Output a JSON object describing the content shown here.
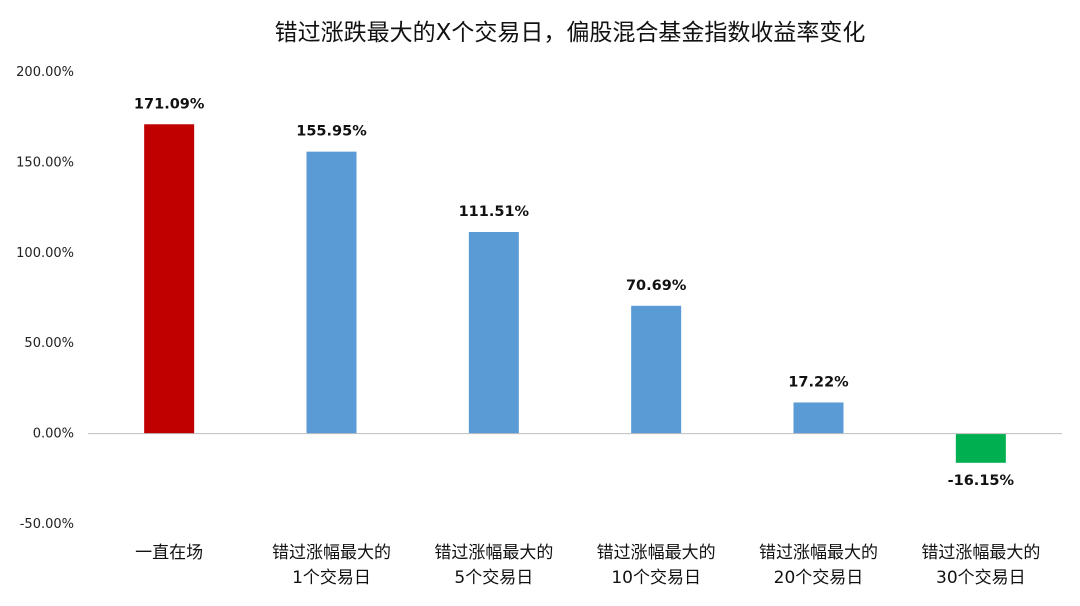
{
  "chart_data": {
    "type": "bar",
    "title": "错过涨跌最大的X个交易日，偏股混合基金指数收益率变化",
    "xlabel": "",
    "ylabel": "",
    "ylim": [
      -50,
      200
    ],
    "yticks": [
      -50,
      0,
      50,
      100,
      150,
      200
    ],
    "ytick_labels": [
      "-50.00%",
      "0.00%",
      "50.00%",
      "100.00%",
      "150.00%",
      "200.00%"
    ],
    "grid": false,
    "legend": "none",
    "categories": [
      [
        "一直在场"
      ],
      [
        "错过涨幅最大的",
        "1个交易日"
      ],
      [
        "错过涨幅最大的",
        "5个交易日"
      ],
      [
        "错过涨幅最大的",
        "10个交易日"
      ],
      [
        "错过涨幅最大的",
        "20个交易日"
      ],
      [
        "错过涨幅最大的",
        "30个交易日"
      ]
    ],
    "values": [
      171.09,
      155.95,
      111.51,
      70.69,
      17.22,
      -16.15
    ],
    "value_labels": [
      "171.09%",
      "155.95%",
      "111.51%",
      "70.69%",
      "17.22%",
      "-16.15%"
    ],
    "colors": [
      "#C00000",
      "#5B9BD5",
      "#5B9BD5",
      "#5B9BD5",
      "#5B9BD5",
      "#00B050"
    ],
    "axis_color": "#BFBFBF"
  }
}
